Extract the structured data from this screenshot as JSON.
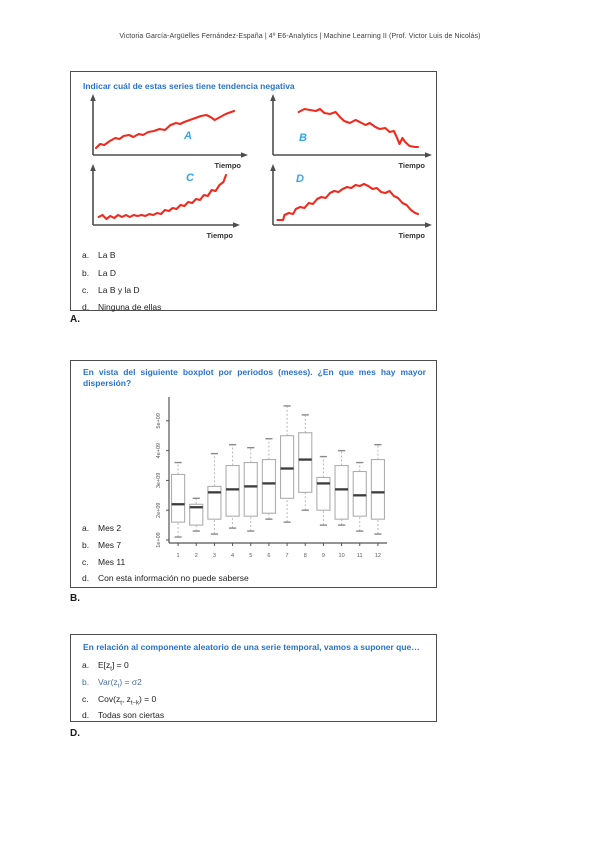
{
  "page": {
    "header": "Victoria García-Argüelles Fernández-España | 4º E6-Analytics | Machine Learning II (Prof. Victor Luis de Nicolás)"
  },
  "colors": {
    "question_blue": "#2873CE",
    "series_red": "#EF2A1E",
    "series_label_cyan": "#35A7E8",
    "axis_gray": "#4d4d4d",
    "box_gray": "#aeaeae",
    "median_dark": "#3c3c3c"
  },
  "q1": {
    "title": "Indicar cuál de estas series tiene tendencia negativa",
    "options": [
      {
        "letter": "a.",
        "text": "La B"
      },
      {
        "letter": "b.",
        "text": "La D"
      },
      {
        "letter": "c.",
        "text": "La B y la D"
      },
      {
        "letter": "d.",
        "text": "Ninguna de ellas"
      }
    ],
    "answer": "A."
  },
  "q2": {
    "title": "En vista del siguiente boxplot por periodos (meses). ¿En que mes hay mayor dispersión?",
    "options": [
      {
        "letter": "a.",
        "text": "Mes 2"
      },
      {
        "letter": "b.",
        "text": "Mes 7"
      },
      {
        "letter": "c.",
        "text": "Mes 11"
      },
      {
        "letter": "d.",
        "text": "Con esta información no puede saberse"
      }
    ],
    "answer": "B."
  },
  "q3": {
    "title": "En relación al componente aleatorio de una serie temporal, vamos a suponer que…",
    "options": [
      {
        "letter": "a.",
        "segments": [
          {
            "t": "E[z"
          },
          {
            "s": "t"
          },
          {
            "t": "] = 0"
          }
        ]
      },
      {
        "letter": "b.",
        "segments": [
          {
            "t": "Var(z"
          },
          {
            "s": "t"
          },
          {
            "t": ") = σ2"
          }
        ],
        "blue": true
      },
      {
        "letter": "c.",
        "segments": [
          {
            "t": "Cov(z"
          },
          {
            "s": "t"
          },
          {
            "t": ", z"
          },
          {
            "s": "t−k"
          },
          {
            "t": ") = 0"
          }
        ]
      },
      {
        "letter": "d.",
        "segments": [
          {
            "t": "Todas son ciertas"
          }
        ]
      }
    ],
    "answer": "D."
  },
  "chart_data": [
    {
      "type": "line",
      "series_label": "A",
      "xlabel": "Tiempo",
      "label_pos": [
        99,
        46
      ],
      "points": [
        [
          0,
          6
        ],
        [
          3,
          14
        ],
        [
          6,
          12
        ],
        [
          10,
          20
        ],
        [
          14,
          26
        ],
        [
          17,
          24
        ],
        [
          20,
          30
        ],
        [
          24,
          32
        ],
        [
          27,
          28
        ],
        [
          31,
          34
        ],
        [
          34,
          32
        ],
        [
          38,
          38
        ],
        [
          42,
          40
        ],
        [
          46,
          44
        ],
        [
          50,
          42
        ],
        [
          54,
          52
        ],
        [
          58,
          56
        ],
        [
          61,
          54
        ],
        [
          64,
          58
        ],
        [
          68,
          62
        ],
        [
          72,
          66
        ],
        [
          76,
          70
        ],
        [
          80,
          72
        ],
        [
          83,
          68
        ],
        [
          86,
          62
        ],
        [
          90,
          68
        ],
        [
          94,
          74
        ],
        [
          100,
          80
        ]
      ]
    },
    {
      "type": "line",
      "series_label": "B",
      "xlabel": "Tiempo",
      "label_pos": [
        34,
        48
      ],
      "points": [
        [
          16,
          78
        ],
        [
          20,
          84
        ],
        [
          24,
          82
        ],
        [
          28,
          80
        ],
        [
          31,
          84
        ],
        [
          34,
          76
        ],
        [
          38,
          74
        ],
        [
          42,
          78
        ],
        [
          45,
          68
        ],
        [
          48,
          60
        ],
        [
          52,
          56
        ],
        [
          56,
          62
        ],
        [
          59,
          58
        ],
        [
          63,
          52
        ],
        [
          66,
          56
        ],
        [
          70,
          48
        ],
        [
          73,
          44
        ],
        [
          77,
          46
        ],
        [
          80,
          38
        ],
        [
          83,
          40
        ],
        [
          85,
          28
        ],
        [
          87,
          14
        ],
        [
          89,
          26
        ],
        [
          91,
          18
        ],
        [
          94,
          10
        ],
        [
          98,
          8
        ],
        [
          100,
          8
        ]
      ]
    },
    {
      "type": "line",
      "series_label": "C",
      "xlabel": "Tiempo",
      "label_pos": [
        101,
        18
      ],
      "points": [
        [
          2,
          8
        ],
        [
          5,
          12
        ],
        [
          8,
          4
        ],
        [
          11,
          10
        ],
        [
          14,
          6
        ],
        [
          17,
          12
        ],
        [
          20,
          8
        ],
        [
          23,
          12
        ],
        [
          26,
          8
        ],
        [
          29,
          12
        ],
        [
          32,
          10
        ],
        [
          35,
          12
        ],
        [
          38,
          10
        ],
        [
          41,
          14
        ],
        [
          44,
          12
        ],
        [
          47,
          16
        ],
        [
          50,
          14
        ],
        [
          53,
          22
        ],
        [
          56,
          20
        ],
        [
          59,
          26
        ],
        [
          62,
          24
        ],
        [
          65,
          32
        ],
        [
          68,
          30
        ],
        [
          71,
          38
        ],
        [
          74,
          36
        ],
        [
          77,
          44
        ],
        [
          80,
          42
        ],
        [
          83,
          52
        ],
        [
          86,
          50
        ],
        [
          89,
          62
        ],
        [
          92,
          60
        ],
        [
          95,
          72
        ],
        [
          98,
          78
        ],
        [
          100,
          92
        ]
      ]
    },
    {
      "type": "line",
      "series_label": "D",
      "xlabel": "Tiempo",
      "label_pos": [
        31,
        19
      ],
      "points": [
        [
          1,
          2
        ],
        [
          5,
          2
        ],
        [
          6,
          12
        ],
        [
          9,
          16
        ],
        [
          12,
          14
        ],
        [
          14,
          24
        ],
        [
          17,
          28
        ],
        [
          20,
          26
        ],
        [
          23,
          36
        ],
        [
          26,
          34
        ],
        [
          29,
          44
        ],
        [
          32,
          48
        ],
        [
          35,
          46
        ],
        [
          38,
          56
        ],
        [
          41,
          60
        ],
        [
          44,
          58
        ],
        [
          47,
          64
        ],
        [
          50,
          68
        ],
        [
          53,
          66
        ],
        [
          56,
          72
        ],
        [
          59,
          70
        ],
        [
          62,
          74
        ],
        [
          65,
          70
        ],
        [
          68,
          64
        ],
        [
          71,
          66
        ],
        [
          74,
          58
        ],
        [
          77,
          56
        ],
        [
          80,
          60
        ],
        [
          83,
          50
        ],
        [
          86,
          46
        ],
        [
          89,
          36
        ],
        [
          92,
          32
        ],
        [
          95,
          22
        ],
        [
          98,
          16
        ],
        [
          100,
          14
        ]
      ]
    },
    {
      "type": "boxplot",
      "categories": [
        "1",
        "2",
        "3",
        "4",
        "5",
        "6",
        "7",
        "8",
        "9",
        "10",
        "11",
        "12"
      ],
      "ytick_values": [
        1,
        2,
        3,
        4,
        5
      ],
      "ytick_labels": [
        "1e+09",
        "2e+09",
        "3e+09",
        "4e+09",
        "5e+09"
      ],
      "ylim": [
        0.9,
        5.8
      ],
      "unit": "×1e9",
      "stats": [
        {
          "whislo": 1.1,
          "q1": 1.6,
          "med": 2.2,
          "q3": 3.2,
          "whishi": 3.6
        },
        {
          "whislo": 1.3,
          "q1": 1.5,
          "med": 2.1,
          "q3": 2.2,
          "whishi": 2.4
        },
        {
          "whislo": 1.2,
          "q1": 1.7,
          "med": 2.6,
          "q3": 2.8,
          "whishi": 3.9
        },
        {
          "whislo": 1.4,
          "q1": 1.8,
          "med": 2.7,
          "q3": 3.5,
          "whishi": 4.2
        },
        {
          "whislo": 1.3,
          "q1": 1.8,
          "med": 2.8,
          "q3": 3.6,
          "whishi": 4.1
        },
        {
          "whislo": 1.7,
          "q1": 1.9,
          "med": 2.9,
          "q3": 3.7,
          "whishi": 4.4
        },
        {
          "whislo": 1.6,
          "q1": 2.4,
          "med": 3.4,
          "q3": 4.5,
          "whishi": 5.5
        },
        {
          "whislo": 2.0,
          "q1": 2.6,
          "med": 3.7,
          "q3": 4.6,
          "whishi": 5.2
        },
        {
          "whislo": 1.5,
          "q1": 2.0,
          "med": 2.9,
          "q3": 3.1,
          "whishi": 3.8
        },
        {
          "whislo": 1.5,
          "q1": 1.7,
          "med": 2.7,
          "q3": 3.5,
          "whishi": 4.0
        },
        {
          "whislo": 1.3,
          "q1": 1.8,
          "med": 2.5,
          "q3": 3.3,
          "whishi": 3.6
        },
        {
          "whislo": 1.2,
          "q1": 1.7,
          "med": 2.6,
          "q3": 3.7,
          "whishi": 4.2
        }
      ]
    }
  ]
}
